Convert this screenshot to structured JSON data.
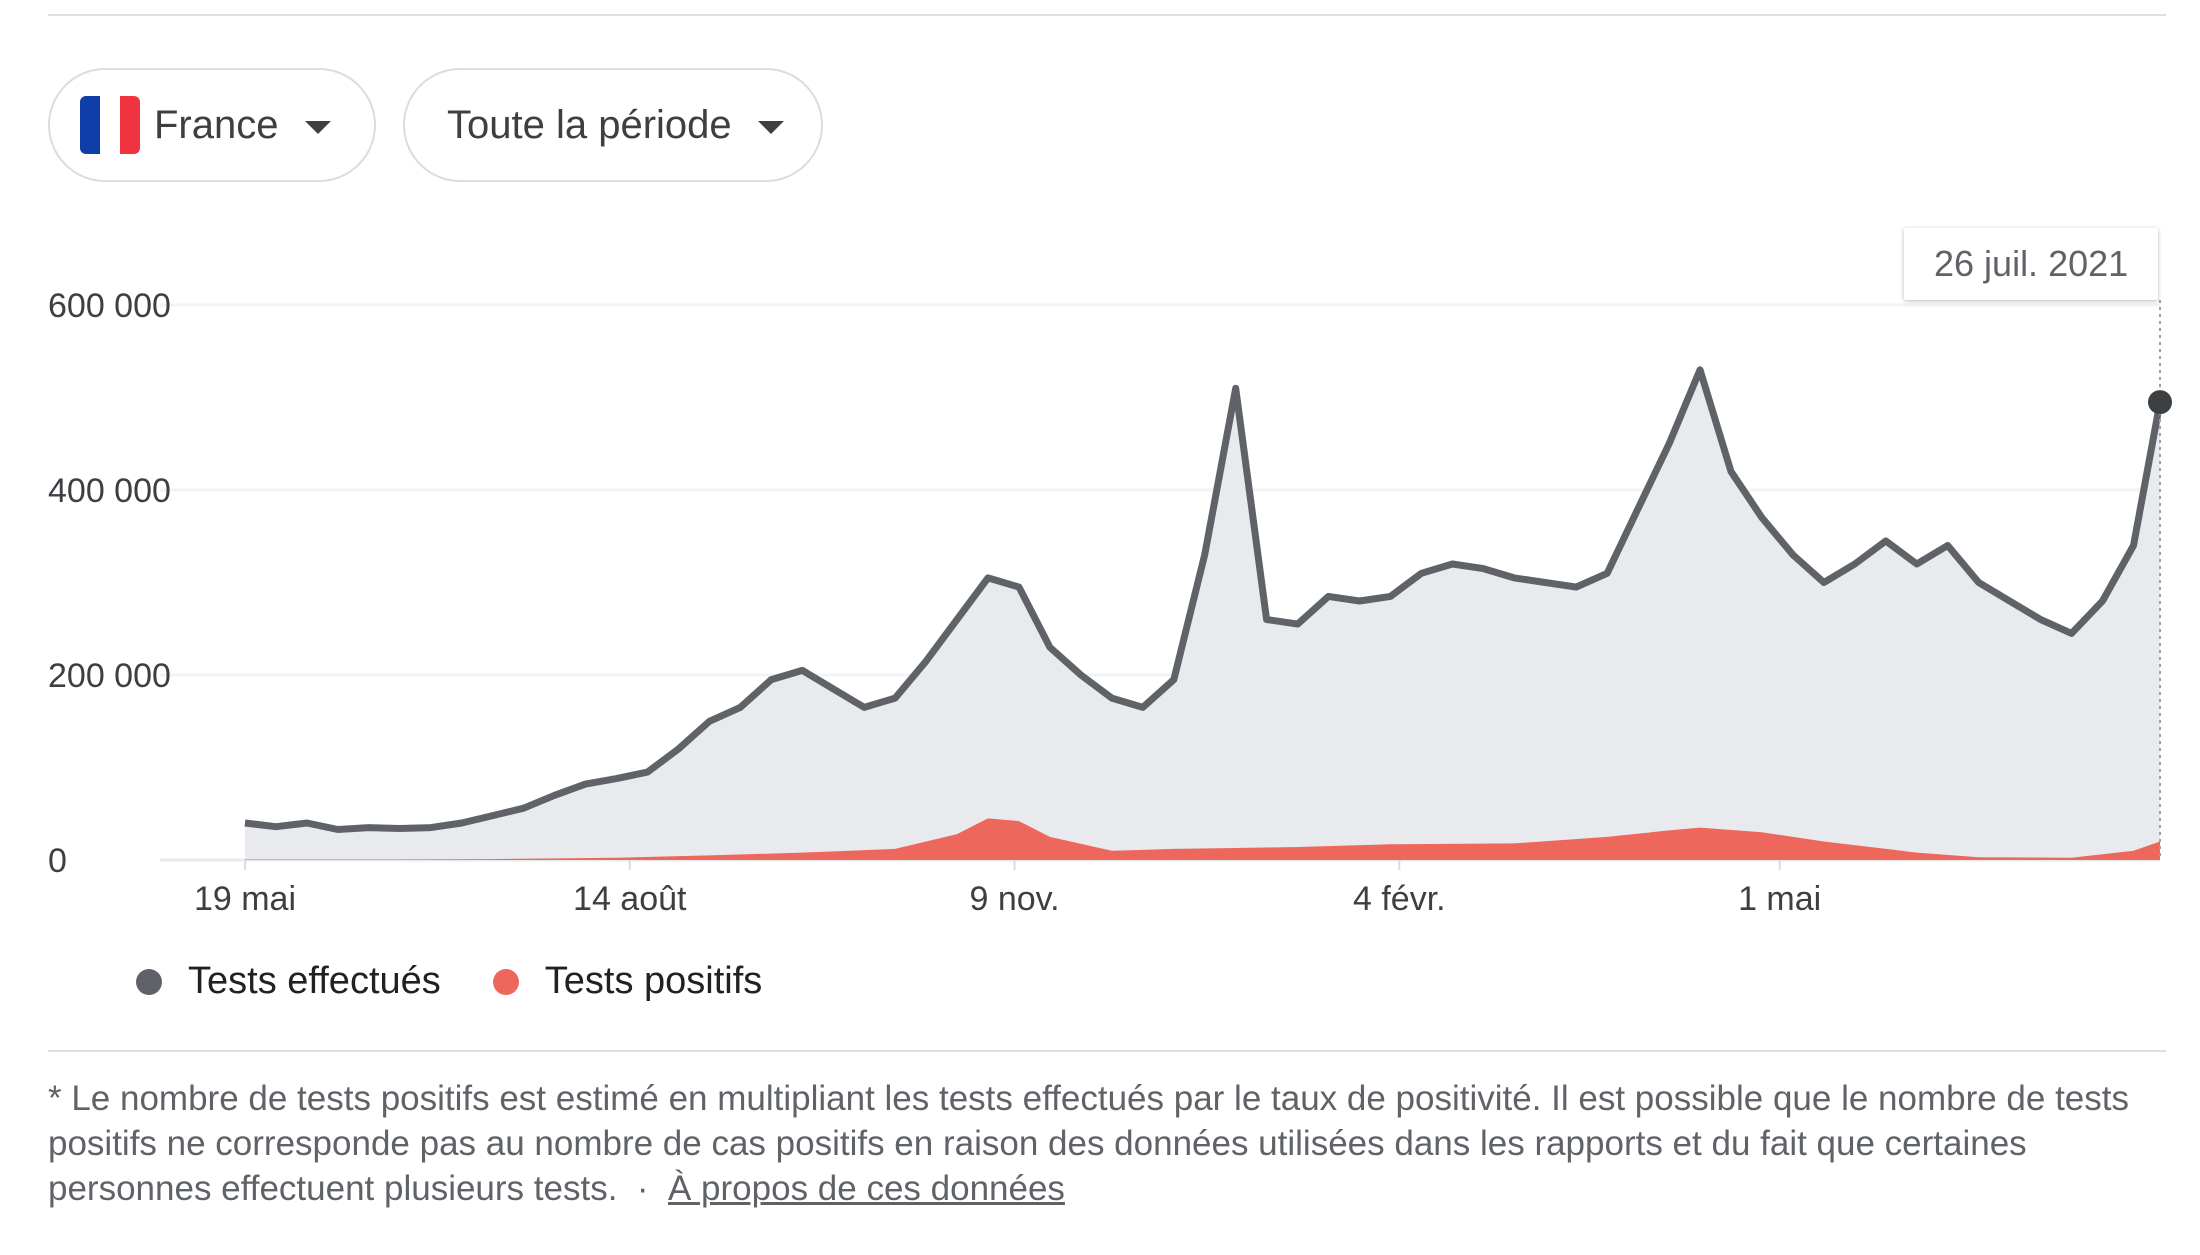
{
  "controls": {
    "country_label": "France",
    "period_label": "Toute la période"
  },
  "colors": {
    "tests_line": "#5f6368",
    "tests_fill": "#e8eaed",
    "positive_fill": "#ee675c",
    "flag": [
      "#0f3ea8",
      "#ffffff",
      "#ef3340"
    ]
  },
  "tooltip": {
    "date": "26 juil. 2021"
  },
  "footnote": {
    "text": "* Le nombre de tests positifs est estimé en multipliant les tests effectués par le taux de positivité. Il est possible que le nombre de tests positifs ne corresponde pas au nombre de cas positifs en raison des données utilisées dans les rapports et du fait que certaines personnes effectuent plusieurs tests.",
    "separator": "·",
    "link": "À propos de ces données"
  },
  "chart_data": {
    "type": "area",
    "title": "",
    "xlabel": "",
    "ylabel": "",
    "x_range": [
      "2020-05-19",
      "2021-07-26"
    ],
    "ylim": [
      0,
      600000
    ],
    "yticks": [
      0,
      200000,
      400000,
      600000
    ],
    "ytick_labels": [
      "0",
      "200 000",
      "400 000",
      "600 000"
    ],
    "xticks": [
      {
        "date": "2020-05-19",
        "label": "19 mai"
      },
      {
        "date": "2020-08-14",
        "label": "14 août"
      },
      {
        "date": "2020-11-09",
        "label": "9 nov."
      },
      {
        "date": "2021-02-04",
        "label": "4 févr."
      },
      {
        "date": "2021-05-01",
        "label": "1 mai"
      }
    ],
    "grid": true,
    "legend_position": "bottom-left",
    "highlight": {
      "date": "2021-07-26",
      "series": "Tests effectués"
    },
    "series": [
      {
        "name": "Tests effectués",
        "points": [
          [
            "2020-05-19",
            40000
          ],
          [
            "2020-05-26",
            36000
          ],
          [
            "2020-06-02",
            40000
          ],
          [
            "2020-06-09",
            33000
          ],
          [
            "2020-06-16",
            35000
          ],
          [
            "2020-06-23",
            34000
          ],
          [
            "2020-06-30",
            35000
          ],
          [
            "2020-07-07",
            40000
          ],
          [
            "2020-07-14",
            48000
          ],
          [
            "2020-07-21",
            56000
          ],
          [
            "2020-07-28",
            70000
          ],
          [
            "2020-08-04",
            82000
          ],
          [
            "2020-08-11",
            88000
          ],
          [
            "2020-08-18",
            95000
          ],
          [
            "2020-08-25",
            120000
          ],
          [
            "2020-09-01",
            150000
          ],
          [
            "2020-09-08",
            165000
          ],
          [
            "2020-09-15",
            195000
          ],
          [
            "2020-09-22",
            205000
          ],
          [
            "2020-09-29",
            185000
          ],
          [
            "2020-10-06",
            165000
          ],
          [
            "2020-10-13",
            175000
          ],
          [
            "2020-10-20",
            215000
          ],
          [
            "2020-10-27",
            260000
          ],
          [
            "2020-11-03",
            305000
          ],
          [
            "2020-11-10",
            295000
          ],
          [
            "2020-11-17",
            230000
          ],
          [
            "2020-11-24",
            200000
          ],
          [
            "2020-12-01",
            175000
          ],
          [
            "2020-12-08",
            165000
          ],
          [
            "2020-12-15",
            195000
          ],
          [
            "2020-12-22",
            330000
          ],
          [
            "2020-12-29",
            510000
          ],
          [
            "2021-01-05",
            260000
          ],
          [
            "2021-01-12",
            255000
          ],
          [
            "2021-01-19",
            285000
          ],
          [
            "2021-01-26",
            280000
          ],
          [
            "2021-02-02",
            285000
          ],
          [
            "2021-02-09",
            310000
          ],
          [
            "2021-02-16",
            320000
          ],
          [
            "2021-02-23",
            315000
          ],
          [
            "2021-03-02",
            305000
          ],
          [
            "2021-03-09",
            300000
          ],
          [
            "2021-03-16",
            295000
          ],
          [
            "2021-03-23",
            310000
          ],
          [
            "2021-03-30",
            380000
          ],
          [
            "2021-04-06",
            450000
          ],
          [
            "2021-04-13",
            530000
          ],
          [
            "2021-04-20",
            420000
          ],
          [
            "2021-04-27",
            370000
          ],
          [
            "2021-05-04",
            330000
          ],
          [
            "2021-05-11",
            300000
          ],
          [
            "2021-05-18",
            320000
          ],
          [
            "2021-05-25",
            345000
          ],
          [
            "2021-06-01",
            320000
          ],
          [
            "2021-06-08",
            340000
          ],
          [
            "2021-06-15",
            300000
          ],
          [
            "2021-06-22",
            280000
          ],
          [
            "2021-06-29",
            260000
          ],
          [
            "2021-07-06",
            245000
          ],
          [
            "2021-07-13",
            280000
          ],
          [
            "2021-07-20",
            340000
          ],
          [
            "2021-07-26",
            495000
          ]
        ]
      },
      {
        "name": "Tests positifs",
        "points": [
          [
            "2020-05-19",
            500
          ],
          [
            "2020-06-16",
            500
          ],
          [
            "2020-07-14",
            1000
          ],
          [
            "2020-08-11",
            2500
          ],
          [
            "2020-09-01",
            5000
          ],
          [
            "2020-09-22",
            8000
          ],
          [
            "2020-10-13",
            12000
          ],
          [
            "2020-10-27",
            28000
          ],
          [
            "2020-11-03",
            45000
          ],
          [
            "2020-11-10",
            42000
          ],
          [
            "2020-11-17",
            25000
          ],
          [
            "2020-12-01",
            10000
          ],
          [
            "2020-12-15",
            12000
          ],
          [
            "2020-12-29",
            13000
          ],
          [
            "2021-01-12",
            14000
          ],
          [
            "2021-02-02",
            17000
          ],
          [
            "2021-03-02",
            18000
          ],
          [
            "2021-03-23",
            25000
          ],
          [
            "2021-04-06",
            32000
          ],
          [
            "2021-04-13",
            35000
          ],
          [
            "2021-04-27",
            30000
          ],
          [
            "2021-05-11",
            20000
          ],
          [
            "2021-06-01",
            8000
          ],
          [
            "2021-06-15",
            3000
          ],
          [
            "2021-07-06",
            2500
          ],
          [
            "2021-07-20",
            10000
          ],
          [
            "2021-07-26",
            20000
          ]
        ]
      }
    ]
  }
}
